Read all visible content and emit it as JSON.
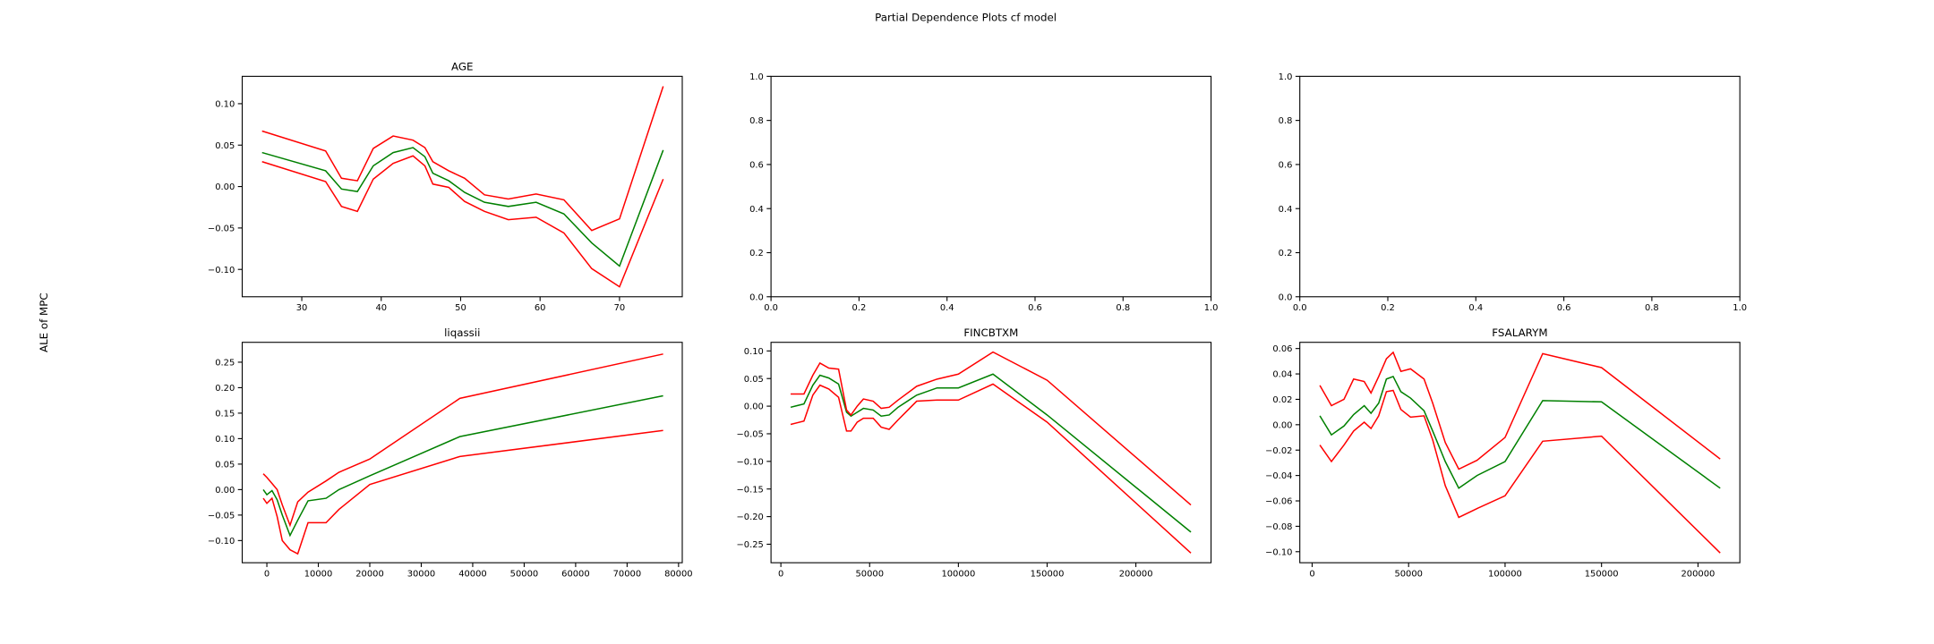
{
  "title": "Partial Dependence Plots cf model",
  "ylabel": "ALE of MPC",
  "chart_data": [
    {
      "type": "line",
      "title": "AGE",
      "x": [
        25,
        33,
        35,
        37,
        39,
        41.5,
        44,
        45.5,
        46.5,
        48.5,
        50.5,
        53,
        56,
        59.5,
        63,
        66.5,
        70,
        75.5
      ],
      "series": [
        {
          "color": "#008000",
          "values": [
            0.041,
            0.019,
            -0.003,
            -0.006,
            0.025,
            0.041,
            0.047,
            0.036,
            0.016,
            0.007,
            -0.007,
            -0.019,
            -0.024,
            -0.019,
            -0.033,
            -0.068,
            -0.096,
            0.044
          ]
        },
        {
          "color": "#ff0000",
          "values": [
            0.067,
            0.043,
            0.01,
            0.007,
            0.046,
            0.061,
            0.056,
            0.047,
            0.03,
            0.019,
            0.01,
            -0.01,
            -0.015,
            -0.009,
            -0.016,
            -0.053,
            -0.039,
            0.121
          ]
        },
        {
          "color": "#ff0000",
          "values": [
            0.03,
            0.006,
            -0.024,
            -0.03,
            0.009,
            0.028,
            0.037,
            0.025,
            0.003,
            -0.001,
            -0.018,
            -0.03,
            -0.04,
            -0.037,
            -0.056,
            -0.099,
            -0.121,
            0.009
          ]
        }
      ],
      "xlim": [
        22.5,
        77.9
      ],
      "xticks": [
        30,
        40,
        50,
        60,
        70
      ],
      "ylim": [
        -0.133,
        0.133
      ],
      "yticks": [
        {
          "value": 0.1,
          "label": "0.10"
        },
        0.05,
        {
          "value": 0,
          "label": "0.00"
        },
        {
          "value": -0.05,
          "label": "−0.05"
        },
        {
          "value": -0.1,
          "label": "−0.10"
        }
      ]
    },
    {
      "type": "line",
      "xlim": [
        0,
        1
      ],
      "xticks": [
        {
          "value": 0,
          "label": "0.0"
        },
        0.2,
        0.4,
        0.6,
        0.8,
        {
          "value": 1,
          "label": "1.0"
        }
      ],
      "ylim": [
        0,
        1
      ],
      "yticks": [
        {
          "value": 0,
          "label": "0.0"
        },
        0.2,
        0.4,
        0.6,
        0.8,
        {
          "value": 1,
          "label": "1.0"
        }
      ]
    },
    {
      "type": "line",
      "xlim": [
        0,
        1
      ],
      "xticks": [
        {
          "value": 0,
          "label": "0.0"
        },
        0.2,
        0.4,
        0.6,
        0.8,
        {
          "value": 1,
          "label": "1.0"
        }
      ],
      "ylim": [
        0,
        1
      ],
      "yticks": [
        {
          "value": 0,
          "label": "0.0"
        },
        0.2,
        0.4,
        0.6,
        0.8,
        {
          "value": 1,
          "label": "1.0"
        }
      ]
    },
    {
      "type": "line",
      "title": "liqassii",
      "x": [
        -700,
        0,
        1000,
        2000,
        3000,
        4500,
        6000,
        8000,
        11500,
        14000,
        20000,
        37500,
        77000
      ],
      "series": [
        {
          "color": "#008000",
          "values": [
            0.0,
            -0.01,
            -0.002,
            -0.02,
            -0.05,
            -0.09,
            -0.06,
            -0.022,
            -0.017,
            0.0,
            0.027,
            0.104,
            0.184
          ]
        },
        {
          "color": "#ff0000",
          "values": [
            0.031,
            0.024,
            0.012,
            0.0,
            -0.03,
            -0.07,
            -0.024,
            -0.005,
            0.017,
            0.034,
            0.06,
            0.179,
            0.266
          ]
        },
        {
          "color": "#ff0000",
          "values": [
            -0.017,
            -0.027,
            -0.017,
            -0.053,
            -0.1,
            -0.118,
            -0.126,
            -0.065,
            -0.065,
            -0.039,
            0.01,
            0.065,
            0.116
          ]
        }
      ],
      "xlim": [
        -4790,
        80720
      ],
      "xticks": [
        0,
        10000,
        20000,
        30000,
        40000,
        50000,
        60000,
        70000,
        80000
      ],
      "ylim": [
        -0.1435,
        0.289
      ],
      "yticks": [
        0.25,
        {
          "value": 0.2,
          "label": "0.20"
        },
        0.15,
        {
          "value": 0.1,
          "label": "0.10"
        },
        0.05,
        {
          "value": 0,
          "label": "0.00"
        },
        {
          "value": -0.05,
          "label": "−0.05"
        },
        {
          "value": -0.1,
          "label": "−0.10"
        }
      ]
    },
    {
      "type": "line",
      "title": "FINCBTXM",
      "x": [
        5500,
        13000,
        18000,
        22000,
        27000,
        32500,
        37000,
        39500,
        43000,
        46500,
        52000,
        56500,
        61000,
        66000,
        76500,
        88000,
        100000,
        119500,
        150000,
        231000
      ],
      "series": [
        {
          "color": "#008000",
          "values": [
            -0.002,
            0.004,
            0.038,
            0.056,
            0.051,
            0.04,
            -0.011,
            -0.018,
            -0.011,
            -0.004,
            -0.007,
            -0.018,
            -0.016,
            -0.002,
            0.02,
            0.033,
            0.033,
            0.058,
            -0.016,
            -0.228
          ]
        },
        {
          "color": "#ff0000",
          "values": [
            0.022,
            0.022,
            0.056,
            0.078,
            0.069,
            0.067,
            -0.007,
            -0.016,
            0.0,
            0.013,
            0.009,
            -0.004,
            -0.002,
            0.011,
            0.036,
            0.049,
            0.058,
            0.098,
            0.047,
            -0.179
          ]
        },
        {
          "color": "#ff0000",
          "values": [
            -0.033,
            -0.027,
            0.02,
            0.038,
            0.031,
            0.016,
            -0.045,
            -0.045,
            -0.029,
            -0.022,
            -0.022,
            -0.038,
            -0.042,
            -0.025,
            0.009,
            0.011,
            0.011,
            0.04,
            -0.029,
            -0.266
          ]
        }
      ],
      "xlim": [
        -5560,
        242360
      ],
      "xticks": [
        0,
        50000,
        100000,
        150000,
        200000
      ],
      "ylim": [
        -0.2835,
        0.1156
      ],
      "yticks": [
        {
          "value": 0.1,
          "label": "0.10"
        },
        0.05,
        {
          "value": 0,
          "label": "0.00"
        },
        {
          "value": -0.05,
          "label": "−0.05"
        },
        {
          "value": -0.1,
          "label": "−0.10"
        },
        {
          "value": -0.15,
          "label": "−0.15"
        },
        {
          "value": -0.2,
          "label": "−0.20"
        },
        {
          "value": -0.25,
          "label": "−0.25"
        }
      ]
    },
    {
      "type": "line",
      "title": "FSALARYM",
      "x": [
        4000,
        10000,
        16500,
        21500,
        27000,
        30500,
        34500,
        38500,
        42000,
        46000,
        51000,
        58000,
        62500,
        69000,
        76000,
        85500,
        100000,
        119500,
        150000,
        211500
      ],
      "series": [
        {
          "color": "#008000",
          "values": [
            0.007,
            -0.008,
            -0.001,
            0.008,
            0.015,
            0.009,
            0.017,
            0.036,
            0.038,
            0.026,
            0.021,
            0.011,
            -0.005,
            -0.029,
            -0.05,
            -0.04,
            -0.029,
            0.019,
            0.018,
            -0.05
          ]
        },
        {
          "color": "#ff0000",
          "values": [
            0.031,
            0.015,
            0.02,
            0.036,
            0.034,
            0.025,
            0.038,
            0.052,
            0.057,
            0.042,
            0.044,
            0.036,
            0.017,
            -0.014,
            -0.035,
            -0.028,
            -0.01,
            0.056,
            0.045,
            -0.027
          ]
        },
        {
          "color": "#ff0000",
          "values": [
            -0.016,
            -0.029,
            -0.016,
            -0.005,
            0.002,
            -0.003,
            0.007,
            0.026,
            0.027,
            0.012,
            0.006,
            0.007,
            -0.012,
            -0.048,
            -0.073,
            -0.066,
            -0.056,
            -0.013,
            -0.009,
            -0.101
          ]
        }
      ],
      "xlim": [
        -6390,
        221700
      ],
      "xticks": [
        0,
        50000,
        100000,
        150000,
        200000
      ],
      "ylim": [
        -0.1087,
        0.0649
      ],
      "yticks": [
        0.06,
        0.04,
        0.02,
        {
          "value": 0,
          "label": "0.00"
        },
        {
          "value": -0.02,
          "label": "−0.02"
        },
        {
          "value": -0.04,
          "label": "−0.04"
        },
        {
          "value": -0.06,
          "label": "−0.06"
        },
        {
          "value": -0.08,
          "label": "−0.08"
        },
        {
          "value": -0.1,
          "label": "−0.10"
        }
      ]
    }
  ]
}
